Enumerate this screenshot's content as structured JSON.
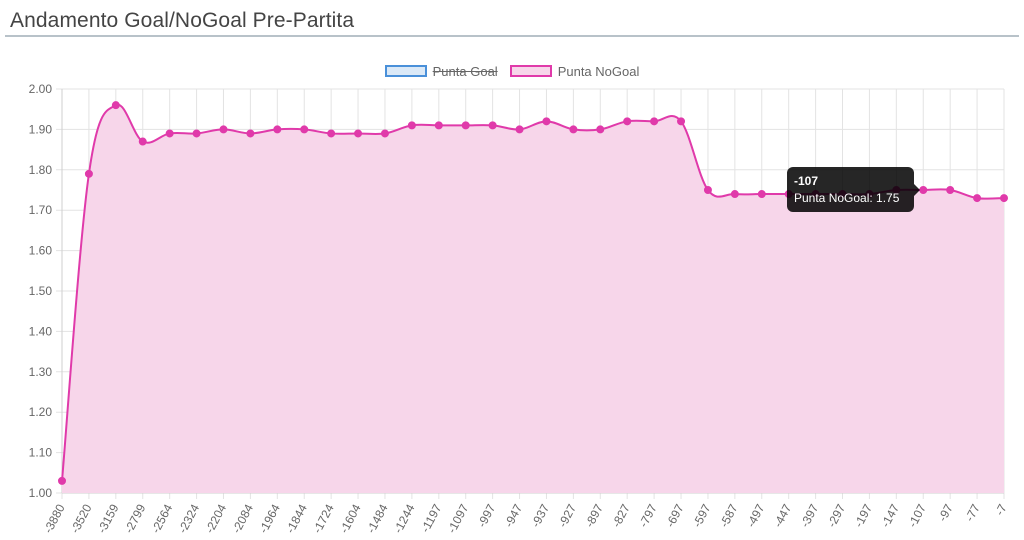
{
  "page": {
    "title": "Andamento Goal/NoGoal Pre-Partita"
  },
  "legend": [
    {
      "label": "Punta Goal",
      "hidden": true,
      "fill": "#dbe9f7",
      "stroke": "#4a90d9"
    },
    {
      "label": "Punta NoGoal",
      "hidden": false,
      "fill": "#f7d6ea",
      "stroke": "#e03aaa"
    }
  ],
  "tooltip": {
    "title": "-107",
    "body": "Punta NoGoal: 1.75"
  },
  "chart_data": {
    "type": "line",
    "title": "",
    "xlabel": "",
    "ylabel": "",
    "ylim": [
      1.0,
      2.0
    ],
    "yticks": [
      "2.00",
      "1.90",
      "1.80",
      "1.70",
      "1.60",
      "1.50",
      "1.40",
      "1.30",
      "1.20",
      "1.10",
      "1.00"
    ],
    "grid": true,
    "legend_position": "top-center",
    "categories": [
      "-3880",
      "-3520",
      "-3159",
      "-2799",
      "-2564",
      "-2324",
      "-2204",
      "-2084",
      "-1964",
      "-1844",
      "-1724",
      "-1604",
      "-1484",
      "-1244",
      "-1197",
      "-1097",
      "-997",
      "-947",
      "-937",
      "-927",
      "-897",
      "-827",
      "-797",
      "-697",
      "-597",
      "-587",
      "-497",
      "-447",
      "-397",
      "-297",
      "-197",
      "-147",
      "-107",
      "-97",
      "-77",
      "-7"
    ],
    "series": [
      {
        "name": "Punta NoGoal",
        "color": "#e03aaa",
        "fill": "#f7d6ea",
        "values": [
          1.03,
          1.79,
          1.96,
          1.87,
          1.89,
          1.89,
          1.9,
          1.89,
          1.9,
          1.9,
          1.89,
          1.89,
          1.89,
          1.91,
          1.91,
          1.91,
          1.91,
          1.9,
          1.92,
          1.9,
          1.9,
          1.92,
          1.92,
          1.92,
          1.75,
          1.74,
          1.74,
          1.74,
          1.74,
          1.74,
          1.74,
          1.75,
          1.75,
          1.75,
          1.73,
          1.73
        ]
      }
    ]
  }
}
